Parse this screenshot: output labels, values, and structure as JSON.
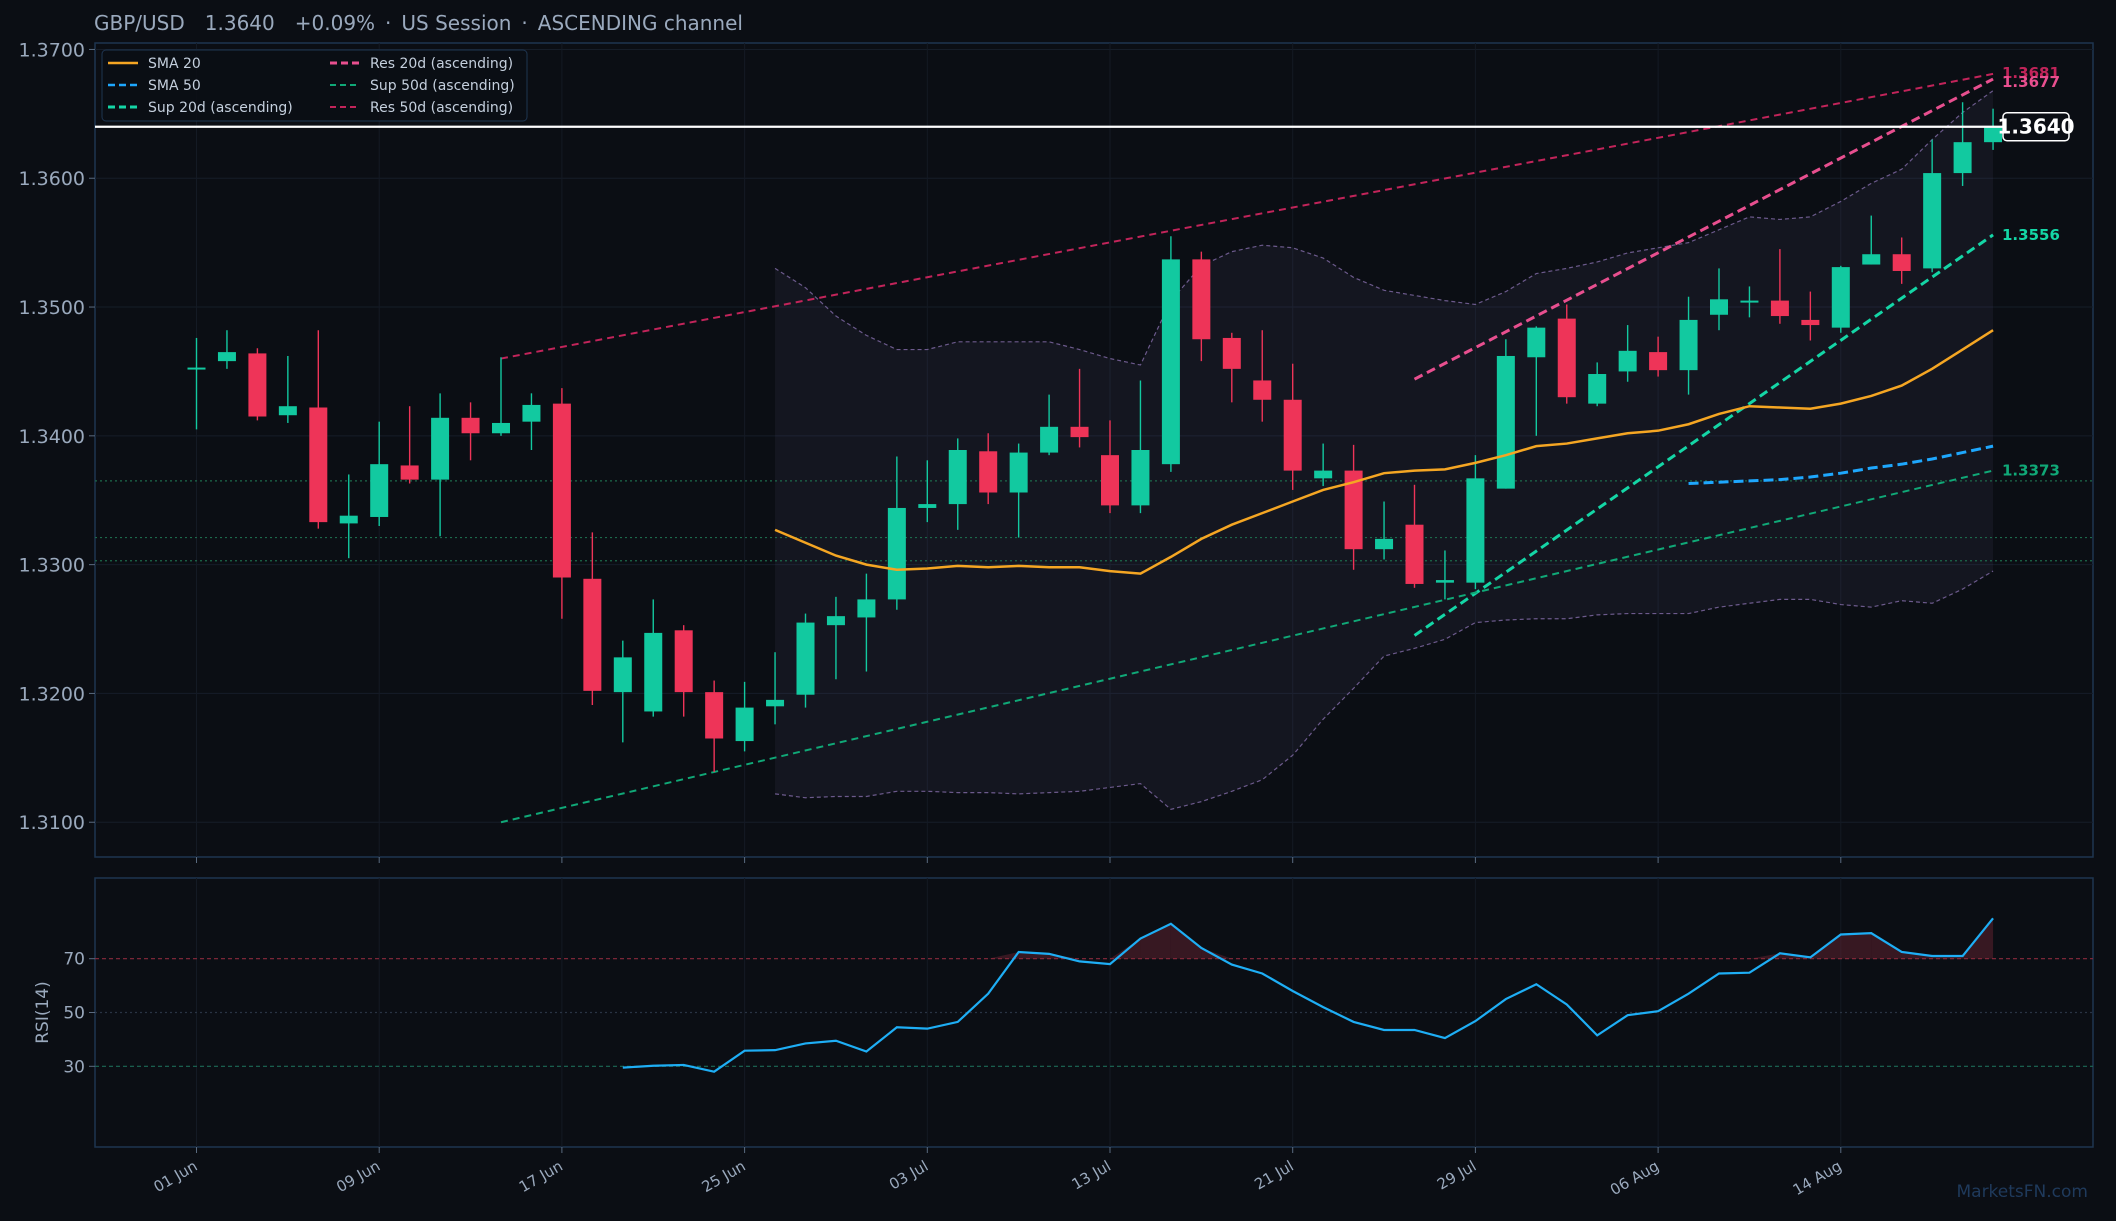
{
  "header": {
    "symbol": "GBP/USD",
    "price": "1.3640",
    "change": "+0.09%",
    "session": "US Session",
    "channel": "ASCENDING channel"
  },
  "watermark": "MarketsFN.com",
  "colors": {
    "background": "#0b0e14",
    "panel_border": "#1e3550",
    "up": "#12c9a0",
    "down": "#ee3458",
    "sma20": "#f5a623",
    "sma50": "#1ea7fd",
    "sup20": "#14d6a6",
    "res20": "#e84f8f",
    "sup50": "#10a877",
    "res50": "#c2245a",
    "rsi": "#1eaef5",
    "text": "#9aa9bd"
  },
  "chart_data": [
    {
      "type": "candlestick",
      "title": "GBP/USD 1.3640 +0.09% · US Session · ASCENDING channel",
      "ylim": [
        1.3073,
        1.3705
      ],
      "y_ticks": [
        "1.3100",
        "1.3200",
        "1.3300",
        "1.3400",
        "1.3500",
        "1.3600",
        "1.3700"
      ],
      "x_tick_labels": [
        "01 Jun",
        "09 Jun",
        "17 Jun",
        "25 Jun",
        "03 Jul",
        "13 Jul",
        "21 Jul",
        "29 Jul",
        "06 Aug",
        "14 Aug"
      ],
      "x_tick_index": [
        0,
        6,
        12,
        18,
        24,
        30,
        36,
        42,
        48,
        54
      ],
      "candles": [
        [
          1.3452,
          1.3476,
          1.3405,
          1.3453
        ],
        [
          1.3458,
          1.3482,
          1.3452,
          1.3465
        ],
        [
          1.3464,
          1.3468,
          1.3412,
          1.3415
        ],
        [
          1.3416,
          1.3462,
          1.341,
          1.3423
        ],
        [
          1.3422,
          1.3482,
          1.3328,
          1.3333
        ],
        [
          1.3332,
          1.337,
          1.3305,
          1.3338
        ],
        [
          1.3337,
          1.3411,
          1.333,
          1.3378
        ],
        [
          1.3377,
          1.3423,
          1.3363,
          1.3366
        ],
        [
          1.3366,
          1.3433,
          1.3322,
          1.3414
        ],
        [
          1.3414,
          1.3426,
          1.3381,
          1.3402
        ],
        [
          1.3402,
          1.3461,
          1.34,
          1.341
        ],
        [
          1.3411,
          1.3433,
          1.3389,
          1.3424
        ],
        [
          1.3425,
          1.3437,
          1.3258,
          1.329
        ],
        [
          1.3289,
          1.3325,
          1.3191,
          1.3202
        ],
        [
          1.3201,
          1.3241,
          1.3162,
          1.3228
        ],
        [
          1.3186,
          1.3273,
          1.3182,
          1.3247
        ],
        [
          1.3249,
          1.3253,
          1.3182,
          1.3201
        ],
        [
          1.3201,
          1.321,
          1.3139,
          1.3165
        ],
        [
          1.3163,
          1.3209,
          1.3155,
          1.3189
        ],
        [
          1.319,
          1.3232,
          1.3176,
          1.3195
        ],
        [
          1.3199,
          1.3262,
          1.3189,
          1.3255
        ],
        [
          1.3253,
          1.3275,
          1.3211,
          1.326
        ],
        [
          1.3259,
          1.3293,
          1.3217,
          1.3273
        ],
        [
          1.3273,
          1.3384,
          1.3265,
          1.3344
        ],
        [
          1.3344,
          1.3381,
          1.3333,
          1.3347
        ],
        [
          1.3347,
          1.3398,
          1.3327,
          1.3389
        ],
        [
          1.3388,
          1.3402,
          1.3347,
          1.3356
        ],
        [
          1.3356,
          1.3394,
          1.3321,
          1.3387
        ],
        [
          1.3387,
          1.3432,
          1.3385,
          1.3407
        ],
        [
          1.3407,
          1.3452,
          1.3391,
          1.3399
        ],
        [
          1.3385,
          1.3412,
          1.334,
          1.3346
        ],
        [
          1.3346,
          1.3443,
          1.334,
          1.3389
        ],
        [
          1.3378,
          1.3555,
          1.3372,
          1.3537
        ],
        [
          1.3537,
          1.3543,
          1.3458,
          1.3475
        ],
        [
          1.3476,
          1.348,
          1.3426,
          1.3452
        ],
        [
          1.3443,
          1.3482,
          1.3411,
          1.3428
        ],
        [
          1.3428,
          1.3456,
          1.3358,
          1.3373
        ],
        [
          1.3367,
          1.3394,
          1.3361,
          1.3373
        ],
        [
          1.3373,
          1.3393,
          1.3296,
          1.3312
        ],
        [
          1.3312,
          1.3349,
          1.3304,
          1.332
        ],
        [
          1.3331,
          1.3362,
          1.3282,
          1.3285
        ],
        [
          1.3286,
          1.3311,
          1.3273,
          1.3288
        ],
        [
          1.3286,
          1.3385,
          1.3281,
          1.3367
        ],
        [
          1.3359,
          1.3475,
          1.3359,
          1.3462
        ],
        [
          1.3461,
          1.3485,
          1.34,
          1.3484
        ],
        [
          1.3491,
          1.3502,
          1.3425,
          1.343
        ],
        [
          1.3425,
          1.3457,
          1.3423,
          1.3448
        ],
        [
          1.345,
          1.3486,
          1.3442,
          1.3466
        ],
        [
          1.3465,
          1.3477,
          1.3446,
          1.3451
        ],
        [
          1.3451,
          1.3508,
          1.3432,
          1.349
        ],
        [
          1.3494,
          1.353,
          1.3482,
          1.3506
        ],
        [
          1.3504,
          1.3516,
          1.3492,
          1.3505
        ],
        [
          1.3505,
          1.3545,
          1.3487,
          1.3493
        ],
        [
          1.349,
          1.3512,
          1.3474,
          1.3486
        ],
        [
          1.3484,
          1.3532,
          1.348,
          1.3531
        ],
        [
          1.3533,
          1.3571,
          1.3533,
          1.3541
        ],
        [
          1.3541,
          1.3554,
          1.3518,
          1.3528
        ],
        [
          1.353,
          1.363,
          1.3527,
          1.3604
        ],
        [
          1.3604,
          1.3659,
          1.3594,
          1.3628
        ],
        [
          1.3628,
          1.3654,
          1.3622,
          1.364
        ]
      ],
      "series": [
        {
          "name": "SMA 20",
          "start": 19,
          "values": [
            1.3327,
            1.3317,
            1.3307,
            1.33,
            1.3296,
            1.3297,
            1.3299,
            1.3298,
            1.3299,
            1.3298,
            1.3298,
            1.3295,
            1.3293,
            1.3306,
            1.332,
            1.3331,
            1.334,
            1.3349,
            1.3358,
            1.3364,
            1.3371,
            1.3373,
            1.3374,
            1.3379,
            1.3385,
            1.3392,
            1.3394,
            1.3398,
            1.3402,
            1.3404,
            1.3409,
            1.3417,
            1.3423,
            1.3422,
            1.3421,
            1.3425,
            1.3431,
            1.3439,
            1.3452,
            1.3467,
            1.3482
          ]
        },
        {
          "name": "SMA 50",
          "start": 49,
          "values": [
            1.3363,
            1.3364,
            1.3365,
            1.3366,
            1.3368,
            1.3371,
            1.3375,
            1.3378,
            1.3382,
            1.3387,
            1.3392
          ]
        },
        {
          "name": "Sup 20d (ascending)",
          "from": [
            40,
            1.3245
          ],
          "to": [
            59,
            1.3556
          ]
        },
        {
          "name": "Sup 50d (ascending)",
          "from": [
            10,
            1.31
          ],
          "to": [
            59,
            1.3373
          ]
        },
        {
          "name": "Res 20d (ascending)",
          "from": [
            40,
            1.3444
          ],
          "to": [
            59,
            1.3677
          ]
        },
        {
          "name": "Res 50d (ascending)",
          "from": [
            10,
            1.346
          ],
          "to": [
            59,
            1.3681
          ]
        }
      ],
      "bollinger": {
        "start": 19,
        "upper": [
          1.353,
          1.3515,
          1.3493,
          1.3478,
          1.3467,
          1.3467,
          1.3473,
          1.3473,
          1.3473,
          1.3473,
          1.3467,
          1.346,
          1.3455,
          1.3505,
          1.3532,
          1.3543,
          1.3548,
          1.3546,
          1.3538,
          1.3523,
          1.3513,
          1.3509,
          1.3505,
          1.3502,
          1.3512,
          1.3526,
          1.353,
          1.3535,
          1.3542,
          1.3546,
          1.355,
          1.356,
          1.357,
          1.3568,
          1.357,
          1.3582,
          1.3596,
          1.3607,
          1.363,
          1.3651,
          1.3668
        ],
        "lower": [
          1.3122,
          1.3119,
          1.312,
          1.312,
          1.3124,
          1.3124,
          1.3123,
          1.3123,
          1.3122,
          1.3123,
          1.3124,
          1.3127,
          1.313,
          1.311,
          1.3116,
          1.3124,
          1.3133,
          1.3152,
          1.318,
          1.3204,
          1.3229,
          1.3235,
          1.3242,
          1.3255,
          1.3257,
          1.3258,
          1.3258,
          1.3261,
          1.3262,
          1.3262,
          1.3262,
          1.3267,
          1.327,
          1.3273,
          1.3273,
          1.3269,
          1.3267,
          1.3272,
          1.327,
          1.3281,
          1.3295
        ]
      },
      "current_price": 1.364,
      "price_labels": [
        "1.3681",
        "1.3677",
        "1.3556",
        "1.3373"
      ],
      "horizontal_levels": [
        1.3365,
        1.3321,
        1.3303
      ],
      "legend": [
        "SMA 20",
        "SMA 50",
        "Sup 20d (ascending)",
        "Res 20d (ascending)",
        "Sup 50d (ascending)",
        "Res 50d (ascending)"
      ],
      "legend_position": "top-left"
    },
    {
      "type": "line",
      "name": "RSI(14)",
      "ylabel": "RSI(14)",
      "ylim": [
        0,
        100
      ],
      "y_ticks": [
        "30",
        "50",
        "70"
      ],
      "overbought": 70,
      "oversold": 30,
      "start": 14,
      "values": [
        29.5,
        30.2,
        30.5,
        28.0,
        35.8,
        36.0,
        38.5,
        39.5,
        35.5,
        44.5,
        44.0,
        46.5,
        57.0,
        72.5,
        71.8,
        69.0,
        68.0,
        77.5,
        83.0,
        74.0,
        67.8,
        64.5,
        58.0,
        52.0,
        46.5,
        43.5,
        43.5,
        40.5,
        46.8,
        55.0,
        60.5,
        53.0,
        41.5,
        49.0,
        50.5,
        57.0,
        64.5,
        64.8,
        72.0,
        70.5,
        79.0,
        79.5,
        72.5,
        71.0,
        71.0,
        85.0
      ]
    }
  ]
}
